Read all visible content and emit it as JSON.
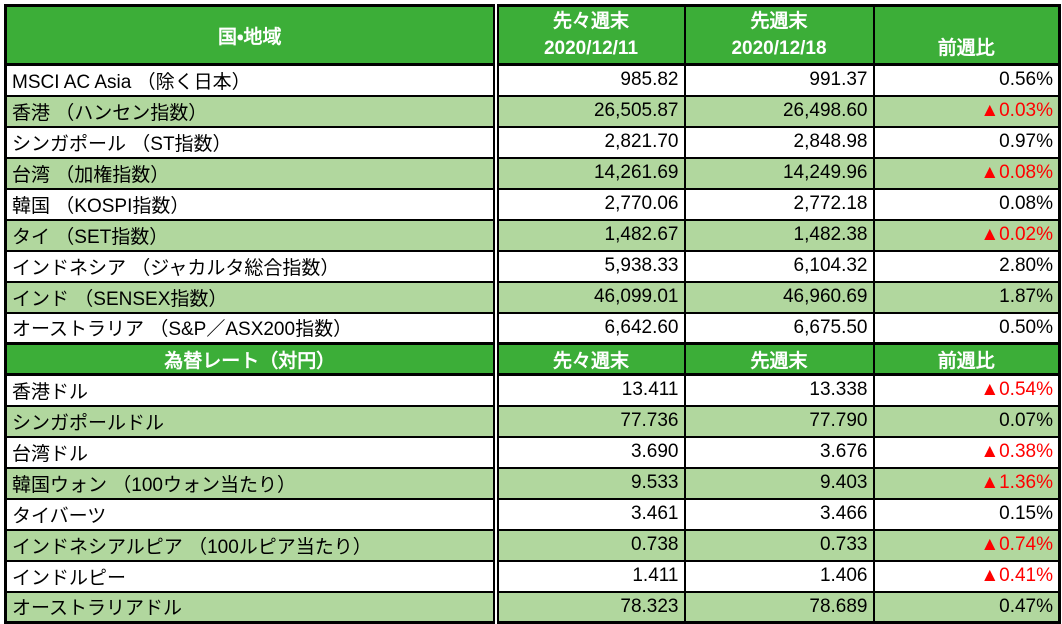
{
  "colors": {
    "header_green": "#3CAE38",
    "row_alt_green": "#B1D79E",
    "row_white": "#FFFFFF",
    "negative_red": "#FF0000",
    "border": "#000000",
    "header_text": "#FFFFFF",
    "body_text": "#000000"
  },
  "chart_data": [
    {
      "type": "table",
      "title": "国・地域",
      "header": {
        "col1": "国・地域",
        "col2_line1": "先々週末",
        "col2_line2": "2020/12/11",
        "col3_line1": "先週末",
        "col3_line2": "2020/12/18",
        "col4": "前週比"
      },
      "rows": [
        {
          "label": "MSCI AC Asia （除く日本）",
          "prev2_week": "985.82",
          "prev_week": "991.37",
          "wow_change": "0.56%",
          "down": false
        },
        {
          "label": "香港 （ハンセン指数）",
          "prev2_week": "26,505.87",
          "prev_week": "26,498.60",
          "wow_change": "▲0.03%",
          "down": true
        },
        {
          "label": "シンガポール （ST指数）",
          "prev2_week": "2,821.70",
          "prev_week": "2,848.98",
          "wow_change": "0.97%",
          "down": false
        },
        {
          "label": "台湾 （加権指数）",
          "prev2_week": "14,261.69",
          "prev_week": "14,249.96",
          "wow_change": "▲0.08%",
          "down": true
        },
        {
          "label": "韓国 （KOSPI指数）",
          "prev2_week": "2,770.06",
          "prev_week": "2,772.18",
          "wow_change": "0.08%",
          "down": false
        },
        {
          "label": "タイ （SET指数）",
          "prev2_week": "1,482.67",
          "prev_week": "1,482.38",
          "wow_change": "▲0.02%",
          "down": true
        },
        {
          "label": "インドネシア （ジャカルタ総合指数）",
          "prev2_week": "5,938.33",
          "prev_week": "6,104.32",
          "wow_change": "2.80%",
          "down": false
        },
        {
          "label": "インド （SENSEX指数）",
          "prev2_week": "46,099.01",
          "prev_week": "46,960.69",
          "wow_change": "1.87%",
          "down": false
        },
        {
          "label": "オーストラリア （S&P／ASX200指数）",
          "prev2_week": "6,642.60",
          "prev_week": "6,675.50",
          "wow_change": "0.50%",
          "down": false
        }
      ]
    },
    {
      "type": "table",
      "title": "為替レート（対円）",
      "header": {
        "col1": "為替レート（対円）",
        "col2": "先々週末",
        "col3": "先週末",
        "col4": "前週比"
      },
      "rows": [
        {
          "label": "香港ドル",
          "prev2_week": "13.411",
          "prev_week": "13.338",
          "wow_change": "▲0.54%",
          "down": true
        },
        {
          "label": "シンガポールドル",
          "prev2_week": "77.736",
          "prev_week": "77.790",
          "wow_change": "0.07%",
          "down": false
        },
        {
          "label": "台湾ドル",
          "prev2_week": "3.690",
          "prev_week": "3.676",
          "wow_change": "▲0.38%",
          "down": true
        },
        {
          "label": "韓国ウォン （100ウォン当たり）",
          "prev2_week": "9.533",
          "prev_week": "9.403",
          "wow_change": "▲1.36%",
          "down": true
        },
        {
          "label": "タイバーツ",
          "prev2_week": "3.461",
          "prev_week": "3.466",
          "wow_change": "0.15%",
          "down": false
        },
        {
          "label": "インドネシアルピア （100ルピア当たり）",
          "prev2_week": "0.738",
          "prev_week": "0.733",
          "wow_change": "▲0.74%",
          "down": true
        },
        {
          "label": "インドルピー",
          "prev2_week": "1.411",
          "prev_week": "1.406",
          "wow_change": "▲0.41%",
          "down": true
        },
        {
          "label": "オーストラリアドル",
          "prev2_week": "78.323",
          "prev_week": "78.689",
          "wow_change": "0.47%",
          "down": false
        }
      ]
    }
  ]
}
